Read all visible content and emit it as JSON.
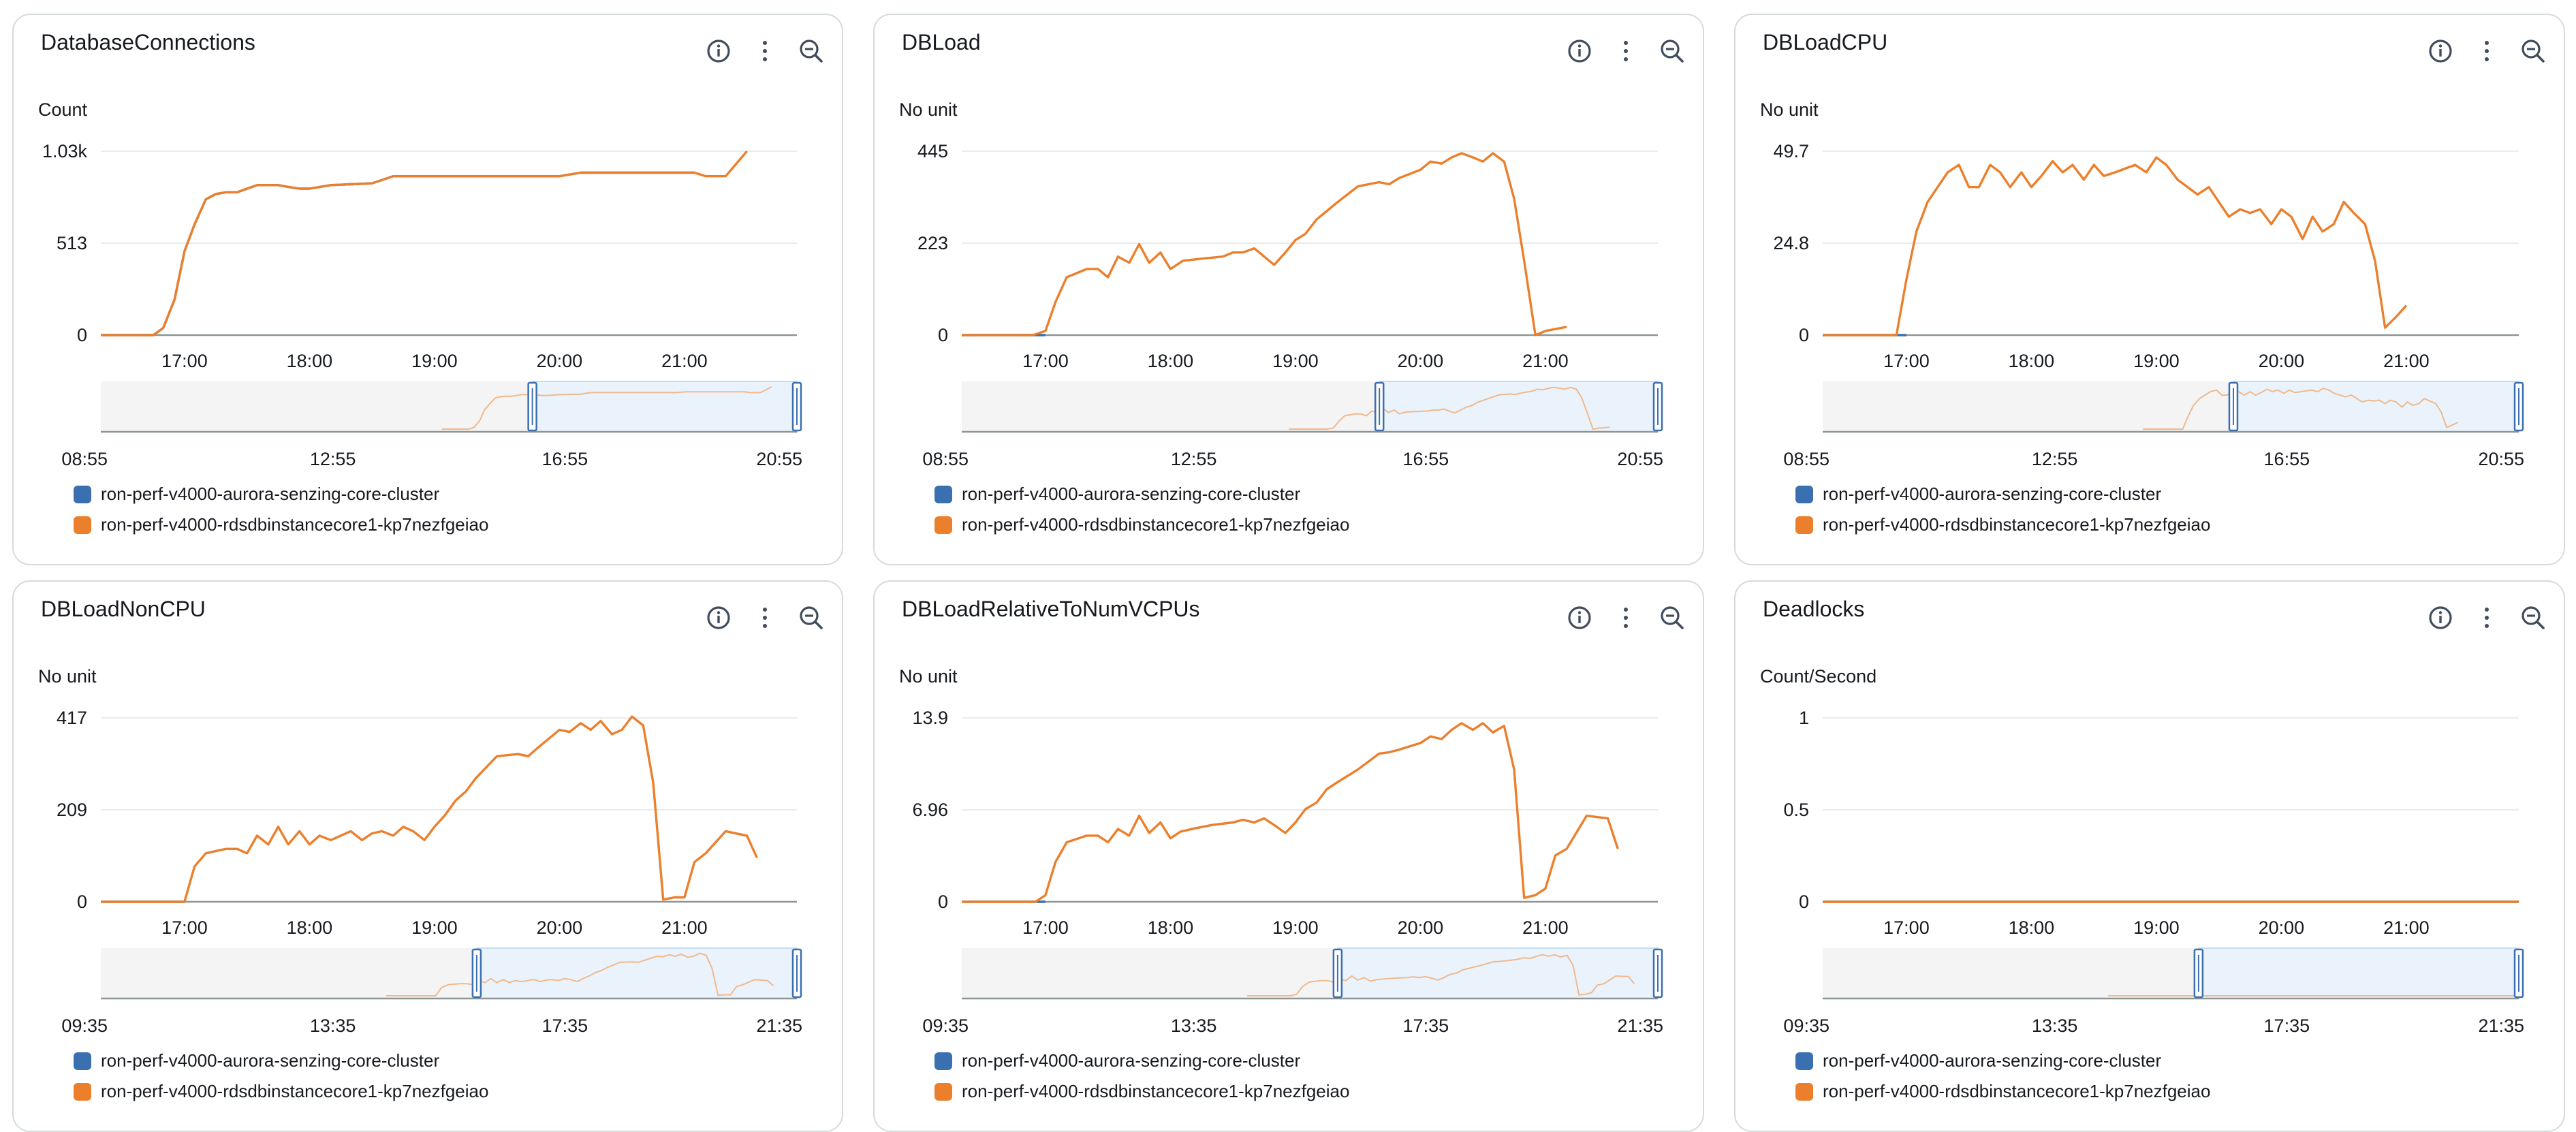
{
  "colors": {
    "series_blue": "#3a6fb0",
    "series_orange": "#ec7f2b",
    "grid": "#e9ebed",
    "axis": "#8d9596",
    "nav_fill": "#eaf3fc",
    "nav_border": "#3a6fb0"
  },
  "icons": [
    "info-icon",
    "more-vertical-icon",
    "zoom-out-icon"
  ],
  "legend": [
    "ron-perf-v4000-aurora-senzing-core-cluster",
    "ron-perf-v4000-rdsdbinstancecore1-kp7nezfgeiao"
  ],
  "panels": [
    {
      "title": "DatabaseConnections",
      "chart_data": {
        "type": "line",
        "unit": "Count",
        "yticks": [
          "0",
          "513",
          "1.03k"
        ],
        "ylim": [
          0,
          1030
        ],
        "xlim": [
          16.33,
          21.9
        ],
        "xticks": [
          {
            "v": 17,
            "label": "17:00"
          },
          {
            "v": 18,
            "label": "18:00"
          },
          {
            "v": 19,
            "label": "19:00"
          },
          {
            "v": 20,
            "label": "20:00"
          },
          {
            "v": 21,
            "label": "21:00"
          }
        ],
        "nav_ticks": [
          "08:55",
          "12:55",
          "16:55",
          "20:55"
        ],
        "nav_selection": [
          0.62,
          1.0
        ],
        "series": [
          {
            "x": [
              16.33,
              16.5,
              16.6,
              16.67,
              16.75,
              16.83,
              16.92,
              17.0,
              17.08,
              17.17,
              17.25,
              17.33,
              17.42,
              17.5,
              17.58,
              17.67,
              17.75,
              17.83,
              17.92,
              18.0,
              18.17,
              18.33,
              18.5,
              18.67,
              18.83,
              19.0,
              19.17,
              19.25,
              19.33,
              19.5,
              19.67,
              19.83,
              20.0,
              20.17,
              20.33,
              20.5,
              20.67,
              20.83,
              21.0,
              21.08
            ],
            "y": [
              0,
              0,
              0,
              0,
              0,
              40,
              200,
              470,
              620,
              760,
              790,
              800,
              800,
              820,
              840,
              840,
              840,
              830,
              820,
              820,
              840,
              845,
              850,
              890,
              890,
              890,
              890,
              890,
              890,
              890,
              890,
              890,
              890,
              910,
              910,
              910,
              910,
              910,
              910,
              910
            ]
          },
          {
            "x": [
              16.33,
              16.5,
              16.6,
              16.67,
              16.75,
              16.83,
              16.92,
              17.0,
              17.08,
              17.17,
              17.25,
              17.33,
              17.42,
              17.5,
              17.58,
              17.67,
              17.75,
              17.83,
              17.92,
              18.0,
              18.17,
              18.33,
              18.5,
              18.67,
              18.83,
              19.0,
              19.17,
              19.25,
              19.33,
              19.5,
              19.67,
              19.83,
              20.0,
              20.17,
              20.33,
              20.5,
              20.67,
              20.83,
              21.0,
              21.08,
              21.17,
              21.33,
              21.5
            ],
            "y": [
              0,
              0,
              0,
              0,
              0,
              40,
              200,
              470,
              620,
              760,
              790,
              800,
              800,
              820,
              840,
              840,
              840,
              830,
              820,
              820,
              840,
              845,
              850,
              890,
              890,
              890,
              890,
              890,
              890,
              890,
              890,
              890,
              890,
              910,
              910,
              910,
              910,
              910,
              910,
              910,
              890,
              890,
              1030
            ]
          }
        ]
      }
    },
    {
      "title": "DBLoad",
      "chart_data": {
        "type": "line",
        "unit": "No unit",
        "yticks": [
          "0",
          "223",
          "445"
        ],
        "ylim": [
          0,
          445
        ],
        "xlim": [
          16.33,
          21.9
        ],
        "xticks": [
          {
            "v": 17,
            "label": "17:00"
          },
          {
            "v": 18,
            "label": "18:00"
          },
          {
            "v": 19,
            "label": "19:00"
          },
          {
            "v": 20,
            "label": "20:00"
          },
          {
            "v": 21,
            "label": "21:00"
          }
        ],
        "nav_ticks": [
          "08:55",
          "12:55",
          "16:55",
          "20:55"
        ],
        "nav_selection": [
          0.6,
          1.0
        ],
        "series": [
          {
            "x": [
              16.33,
              17.0
            ],
            "y": [
              0,
              0
            ]
          },
          {
            "x": [
              16.33,
              16.67,
              16.9,
              17.0,
              17.08,
              17.17,
              17.25,
              17.33,
              17.42,
              17.5,
              17.58,
              17.67,
              17.75,
              17.83,
              17.92,
              18.0,
              18.1,
              18.25,
              18.42,
              18.5,
              18.58,
              18.67,
              18.75,
              18.83,
              18.92,
              19.0,
              19.08,
              19.17,
              19.25,
              19.33,
              19.5,
              19.67,
              19.75,
              19.83,
              20.0,
              20.08,
              20.17,
              20.25,
              20.33,
              20.42,
              20.5,
              20.58,
              20.67,
              20.75,
              20.83,
              20.92,
              21.0,
              21.17
            ],
            "y": [
              0,
              0,
              0,
              10,
              80,
              140,
              150,
              160,
              160,
              140,
              190,
              175,
              220,
              175,
              200,
              160,
              180,
              185,
              190,
              200,
              200,
              210,
              190,
              170,
              200,
              230,
              245,
              280,
              300,
              320,
              360,
              370,
              365,
              380,
              400,
              420,
              415,
              430,
              440,
              430,
              420,
              440,
              420,
              330,
              180,
              0,
              10,
              20
            ]
          }
        ]
      }
    },
    {
      "title": "DBLoadCPU",
      "chart_data": {
        "type": "line",
        "unit": "No unit",
        "yticks": [
          "0",
          "24.8",
          "49.7"
        ],
        "ylim": [
          0,
          49.7
        ],
        "xlim": [
          16.33,
          21.9
        ],
        "xticks": [
          {
            "v": 17,
            "label": "17:00"
          },
          {
            "v": 18,
            "label": "18:00"
          },
          {
            "v": 19,
            "label": "19:00"
          },
          {
            "v": 20,
            "label": "20:00"
          },
          {
            "v": 21,
            "label": "21:00"
          }
        ],
        "nav_ticks": [
          "08:55",
          "12:55",
          "16:55",
          "20:55"
        ],
        "nav_selection": [
          0.59,
          1.0
        ],
        "series": [
          {
            "x": [
              16.33,
              17.0
            ],
            "y": [
              0,
              0
            ]
          },
          {
            "x": [
              16.33,
              16.67,
              16.92,
              17.0,
              17.08,
              17.17,
              17.33,
              17.42,
              17.5,
              17.58,
              17.67,
              17.75,
              17.83,
              17.92,
              18.0,
              18.08,
              18.17,
              18.25,
              18.33,
              18.42,
              18.5,
              18.58,
              18.67,
              18.75,
              18.83,
              18.92,
              19.0,
              19.08,
              19.17,
              19.25,
              19.33,
              19.42,
              19.5,
              19.58,
              19.67,
              19.75,
              19.83,
              19.92,
              20.0,
              20.08,
              20.17,
              20.25,
              20.33,
              20.42,
              20.5,
              20.58,
              20.67,
              20.75,
              20.83,
              20.92,
              21.0
            ],
            "y": [
              0,
              0,
              0,
              15,
              28,
              36,
              44,
              46,
              40,
              40,
              46,
              44,
              40,
              44,
              40,
              43,
              47,
              44,
              46,
              42,
              46,
              43,
              44,
              45,
              46,
              44,
              48,
              46,
              42,
              40,
              38,
              40,
              36,
              32,
              34,
              33,
              34,
              30,
              34,
              32,
              26,
              32,
              28,
              30,
              36,
              33,
              30,
              20,
              2,
              5,
              8
            ]
          }
        ]
      }
    },
    {
      "title": "DBLoadNonCPU",
      "chart_data": {
        "type": "line",
        "unit": "No unit",
        "yticks": [
          "0",
          "209",
          "417"
        ],
        "ylim": [
          0,
          417
        ],
        "xlim": [
          16.33,
          21.9
        ],
        "xticks": [
          {
            "v": 17,
            "label": "17:00"
          },
          {
            "v": 18,
            "label": "18:00"
          },
          {
            "v": 19,
            "label": "19:00"
          },
          {
            "v": 20,
            "label": "20:00"
          },
          {
            "v": 21,
            "label": "21:00"
          }
        ],
        "nav_ticks": [
          "09:35",
          "13:35",
          "17:35",
          "21:35"
        ],
        "nav_selection": [
          0.54,
          1.0
        ],
        "series": [
          {
            "x": [
              16.33,
              17.0
            ],
            "y": [
              0,
              0
            ]
          },
          {
            "x": [
              16.33,
              16.9,
              17.0,
              17.08,
              17.17,
              17.33,
              17.42,
              17.5,
              17.58,
              17.67,
              17.75,
              17.83,
              17.92,
              18.0,
              18.08,
              18.17,
              18.25,
              18.33,
              18.42,
              18.5,
              18.58,
              18.67,
              18.75,
              18.83,
              18.92,
              19.0,
              19.08,
              19.17,
              19.25,
              19.33,
              19.5,
              19.67,
              19.75,
              19.83,
              20.0,
              20.08,
              20.17,
              20.25,
              20.33,
              20.42,
              20.5,
              20.58,
              20.67,
              20.75,
              20.83,
              20.92,
              21.0,
              21.08,
              21.17,
              21.33,
              21.5,
              21.58
            ],
            "y": [
              0,
              0,
              0,
              80,
              110,
              120,
              120,
              110,
              150,
              130,
              170,
              130,
              160,
              130,
              150,
              140,
              150,
              160,
              140,
              155,
              160,
              150,
              170,
              160,
              140,
              170,
              195,
              230,
              250,
              280,
              330,
              335,
              330,
              350,
              390,
              385,
              405,
              390,
              410,
              380,
              390,
              420,
              400,
              270,
              5,
              10,
              10,
              90,
              110,
              160,
              150,
              100
            ]
          }
        ]
      }
    },
    {
      "title": "DBLoadRelativeToNumVCPUs",
      "chart_data": {
        "type": "line",
        "unit": "No unit",
        "yticks": [
          "0",
          "6.96",
          "13.9"
        ],
        "ylim": [
          0,
          13.9
        ],
        "xlim": [
          16.33,
          21.9
        ],
        "xticks": [
          {
            "v": 17,
            "label": "17:00"
          },
          {
            "v": 18,
            "label": "18:00"
          },
          {
            "v": 19,
            "label": "19:00"
          },
          {
            "v": 20,
            "label": "20:00"
          },
          {
            "v": 21,
            "label": "21:00"
          }
        ],
        "nav_ticks": [
          "09:35",
          "13:35",
          "17:35",
          "21:35"
        ],
        "nav_selection": [
          0.54,
          1.0
        ],
        "series": [
          {
            "x": [
              16.33,
              17.0
            ],
            "y": [
              0,
              0
            ]
          },
          {
            "x": [
              16.33,
              16.67,
              16.92,
              17.0,
              17.08,
              17.17,
              17.33,
              17.42,
              17.5,
              17.58,
              17.67,
              17.75,
              17.83,
              17.92,
              18.0,
              18.08,
              18.17,
              18.33,
              18.5,
              18.58,
              18.67,
              18.75,
              18.83,
              18.92,
              19.0,
              19.08,
              19.17,
              19.25,
              19.33,
              19.5,
              19.67,
              19.75,
              19.83,
              20.0,
              20.08,
              20.17,
              20.25,
              20.33,
              20.42,
              20.5,
              20.58,
              20.67,
              20.75,
              20.83,
              20.92,
              21.0,
              21.08,
              21.17,
              21.33,
              21.5,
              21.58
            ],
            "y": [
              0,
              0,
              0,
              0.5,
              3,
              4.5,
              5,
              5,
              4.5,
              5.5,
              5,
              6.5,
              5.2,
              6,
              4.8,
              5.3,
              5.5,
              5.8,
              6,
              6.2,
              6,
              6.3,
              5.8,
              5.2,
              6,
              7,
              7.5,
              8.5,
              9,
              10,
              11.2,
              11.3,
              11.5,
              12,
              12.5,
              12.3,
              13,
              13.5,
              13,
              13.5,
              12.8,
              13.3,
              10,
              0.3,
              0.5,
              1,
              3.5,
              4,
              6.5,
              6.3,
              4
            ]
          }
        ]
      }
    },
    {
      "title": "Deadlocks",
      "chart_data": {
        "type": "line",
        "unit": "Count/Second",
        "yticks": [
          "0",
          "0.5",
          "1"
        ],
        "ylim": [
          0,
          1
        ],
        "xlim": [
          16.33,
          21.9
        ],
        "xticks": [
          {
            "v": 17,
            "label": "17:00"
          },
          {
            "v": 18,
            "label": "18:00"
          },
          {
            "v": 19,
            "label": "19:00"
          },
          {
            "v": 20,
            "label": "20:00"
          },
          {
            "v": 21,
            "label": "21:00"
          }
        ],
        "nav_ticks": [
          "09:35",
          "13:35",
          "17:35",
          "21:35"
        ],
        "nav_selection": [
          0.54,
          1.0
        ],
        "series": [
          {
            "x": [
              16.33,
              21.9
            ],
            "y": [
              0,
              0
            ]
          },
          {
            "x": [
              16.33,
              21.9
            ],
            "y": [
              0,
              0
            ]
          }
        ]
      }
    }
  ]
}
